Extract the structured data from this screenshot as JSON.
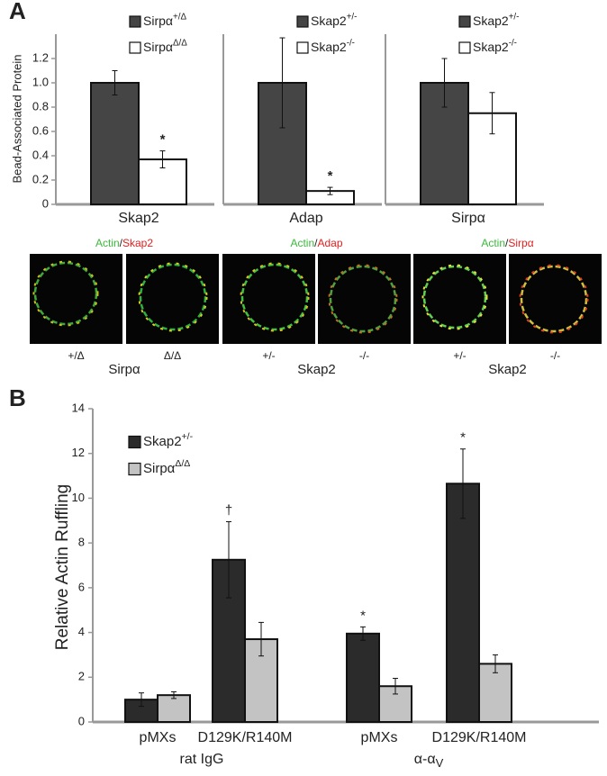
{
  "panel_labels": [
    "A",
    "B"
  ],
  "chart_data": [
    {
      "type": "bar",
      "y_label": "Bead-Associated Protein",
      "categories": [
        "Skap2"
      ],
      "series": [
        {
          "name": "Sirpα",
          "superscript": "+/Δ",
          "color": "#454545",
          "values": [
            1.0
          ],
          "errors": [
            0.1
          ]
        },
        {
          "name": "Sirpα",
          "superscript": "Δ/Δ",
          "color": "#ffffff",
          "values": [
            0.37
          ],
          "errors": [
            0.07
          ],
          "markers": [
            "*"
          ]
        }
      ],
      "ylim": [
        0,
        1.4
      ],
      "yticks": [
        0,
        0.2,
        0.4,
        0.6,
        0.8,
        {
          "value": 1,
          "label": "1.0"
        },
        1.2
      ]
    },
    {
      "type": "bar",
      "categories": [
        "Adap"
      ],
      "series": [
        {
          "name": "Skap2",
          "superscript": "+/-",
          "color": "#454545",
          "values": [
            1.0
          ],
          "errors": [
            0.37
          ]
        },
        {
          "name": "Skap2",
          "superscript": "-/-",
          "color": "#ffffff",
          "values": [
            0.11
          ],
          "errors": [
            0.03
          ],
          "markers": [
            "*"
          ]
        }
      ],
      "ylim": [
        0,
        1.4
      ]
    },
    {
      "type": "bar",
      "categories": [
        "Sirpα"
      ],
      "series": [
        {
          "name": "Skap2",
          "superscript": "+/-",
          "color": "#454545",
          "values": [
            1.0
          ],
          "errors": [
            0.2
          ]
        },
        {
          "name": "Skap2",
          "superscript": "-/-",
          "color": "#ffffff",
          "values": [
            0.75
          ],
          "errors": [
            0.17
          ]
        }
      ],
      "ylim": [
        0,
        1.4
      ]
    },
    {
      "type": "bar",
      "y_label": "Relative Actin Ruffling",
      "categories": [
        "pMXs",
        "D129K/R140M",
        "pMXs",
        "D129K/R140M"
      ],
      "groups": [
        {
          "label": "rat IgG"
        },
        {
          "label": "α-α",
          "subscript": "V"
        }
      ],
      "series": [
        {
          "name": "Skap2",
          "superscript": "+/-",
          "color": "#2b2b2b",
          "values": [
            1.0,
            7.25,
            3.95,
            10.65
          ],
          "errors": [
            0.3,
            1.7,
            0.3,
            1.55
          ],
          "markers": [
            null,
            "†",
            "*",
            "*"
          ]
        },
        {
          "name": "Sirpα",
          "superscript": "Δ/Δ",
          "color": "#c3c3c3",
          "values": [
            1.2,
            3.7,
            1.6,
            2.6
          ],
          "errors": [
            0.15,
            0.75,
            0.35,
            0.4
          ]
        }
      ],
      "ylim": [
        0,
        14
      ],
      "yticks": [
        0,
        2,
        4,
        6,
        8,
        10,
        12,
        14
      ]
    }
  ],
  "micrographs": {
    "stains": [
      {
        "actin": "Actin",
        "separator": "/",
        "target": "Skap2"
      },
      {
        "actin": "Actin",
        "separator": "/",
        "target": "Adap"
      },
      {
        "actin": "Actin",
        "separator": "/",
        "target": "Sirpα"
      }
    ],
    "genotypes": [
      "+/Δ",
      "Δ/Δ",
      "+/-",
      "-/-",
      "+/-",
      "-/-"
    ],
    "groups": [
      "Sirpα",
      "Skap2",
      "Skap2"
    ]
  }
}
